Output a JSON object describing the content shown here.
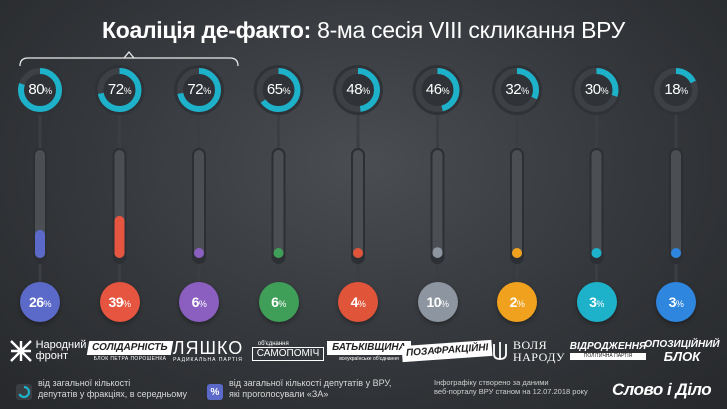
{
  "header": {
    "title_bold": "Коаліція де-факто:",
    "title_rest": "8-ма сесія VIII скликання ВРУ"
  },
  "colors": {
    "ring": "#1db2c9",
    "ring_track": "#3d4146",
    "tube": "#4b4e53"
  },
  "chart_data": {
    "type": "bar",
    "categories": [
      "Народний фронт",
      "Солідарність",
      "Ляшко",
      "Самопоміч",
      "Батьківщина",
      "Позафракційні",
      "Воля народу",
      "Відродження",
      "Опозиційний блок"
    ],
    "series": [
      {
        "name": "від загальної кількості депутатів у фракціях, в середньому",
        "values": [
          80,
          72,
          72,
          65,
          48,
          46,
          32,
          30,
          18
        ]
      },
      {
        "name": "від загальної кількості депутатів у ВРУ, які проголосували «ЗА»",
        "values": [
          26,
          39,
          6,
          6,
          4,
          10,
          2,
          3,
          3
        ]
      }
    ],
    "ring_labels": [
      "80",
      "72",
      "72",
      "65",
      "48",
      "46",
      "32",
      "30",
      "18"
    ],
    "pill_labels": [
      "26",
      "39",
      "6",
      "6",
      "4",
      "10",
      "2",
      "3",
      "3"
    ],
    "percent_sign": "%",
    "tube_colors": [
      "#5b6ac9",
      "#e5553f",
      "#8a5fc0",
      "#3f9e58",
      "#e0553a",
      "#8d95a0",
      "#f0a21e",
      "#1db2c9",
      "#2e86de"
    ],
    "ylim": [
      0,
      100
    ]
  },
  "logos": {
    "nf_line1": "Народний",
    "nf_line2": "фронт",
    "sol_main": "Солідарність",
    "sol_sub": "блок петра порошенка",
    "rp_main": "ЛЯШКО",
    "rp_sub": "радикальна партія",
    "sam_top": "об'єднання",
    "sam_main": "самопоміч",
    "bat_main": "Батьківщина",
    "bat_sub": "всеукраїнське об'єднання",
    "poza": "Позафракційні",
    "vn_line1": "Воля",
    "vn_line2": "народу",
    "vid_main": "Відродження",
    "vid_sub": "політична партія",
    "ob_line1": "Опозиційний",
    "ob_line2": "блок"
  },
  "footer": {
    "legend1_line1": "від загальної кількості",
    "legend1_line2": "депутатів у фракціях, в середньому",
    "legend2_line1": "від загальної кількості депутатів у ВРУ,",
    "legend2_line2": "які проголосували «ЗА»",
    "legend2_icon": "%",
    "source_line1": "Інфографіку створено за даними",
    "source_line2": "веб-порталу ВРУ станом на 12.07.2018 року",
    "brand": "Слово і Діло"
  }
}
